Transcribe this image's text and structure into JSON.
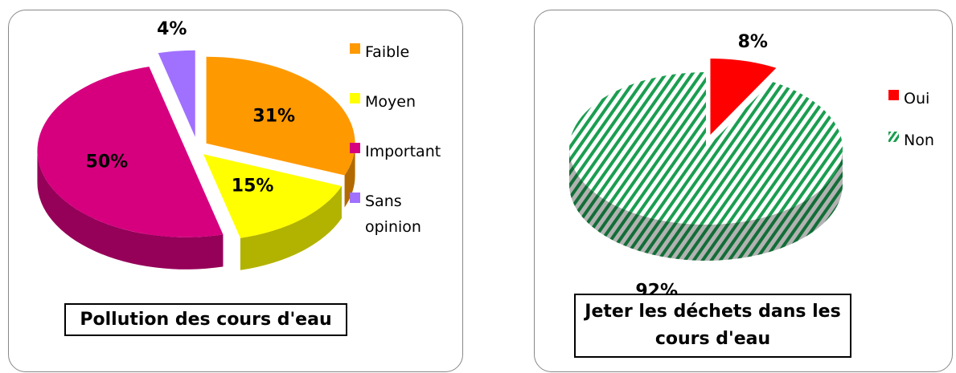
{
  "chart_data": [
    {
      "type": "pie",
      "title": "Pollution des cours d'eau",
      "categories": [
        "Faible",
        "Moyen",
        "Important",
        "Sans opinion"
      ],
      "values": [
        31,
        15,
        50,
        4
      ],
      "value_labels": [
        "31%",
        "15%",
        "50%",
        "4%"
      ],
      "colors": [
        "#ff9900",
        "#ffff00",
        "#d6007f",
        "#a070ff"
      ],
      "legend": "right"
    },
    {
      "type": "pie",
      "title": "Jeter les déchets dans les cours d'eau",
      "categories": [
        "Oui",
        "Non"
      ],
      "values": [
        8,
        92
      ],
      "value_labels": [
        "8%",
        "92%"
      ],
      "colors": [
        "#ff0000",
        "#1a9e50"
      ],
      "hatch": [
        false,
        true
      ],
      "legend": "right"
    }
  ]
}
